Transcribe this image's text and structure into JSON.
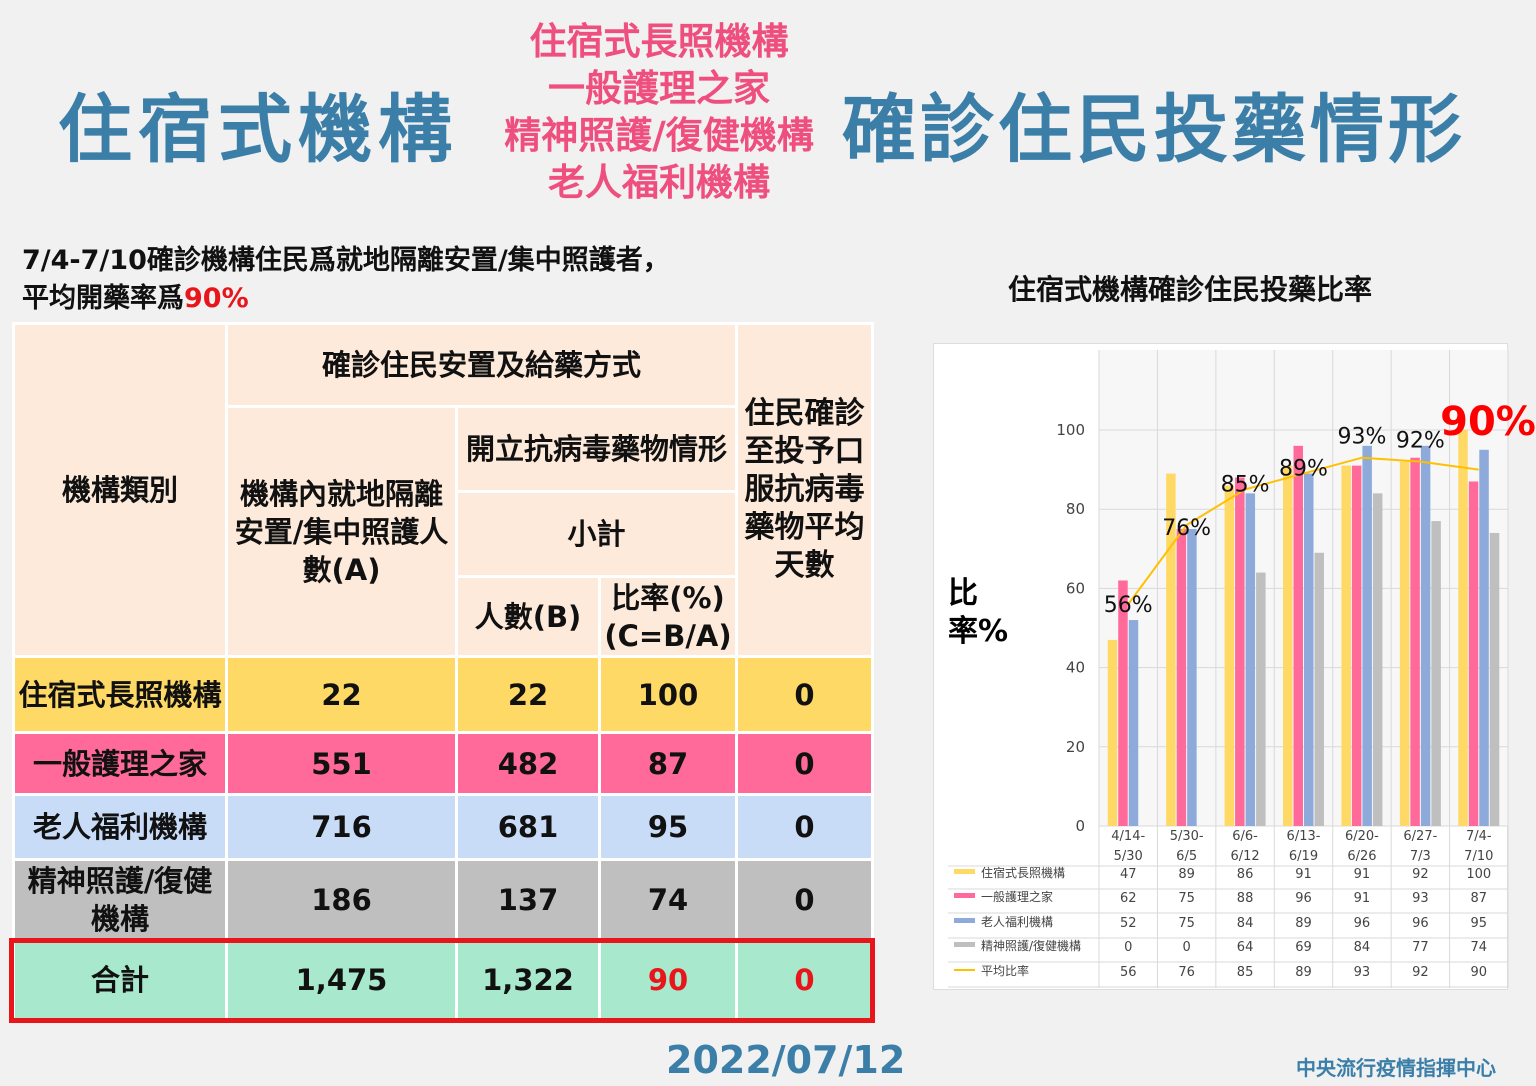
{
  "title": {
    "left": "住宿式機構",
    "middle": [
      "住宿式長照機構",
      "一般護理之家",
      "精神照護/復健機構",
      "老人福利機構"
    ],
    "right": "確診住民投藥情形"
  },
  "subtitle": {
    "line1": "7/4-7/10確診機構住民爲就地隔離安置/集中照護者，",
    "line2_prefix": "平均開藥率爲",
    "line2_value": "90%"
  },
  "table": {
    "headers": {
      "category": "機構類別",
      "group": "確診住民安置及給藥方式",
      "isolated": "機構內就地隔離安置/集中照護人數(A)",
      "antiviral": "開立抗病毒藥物情形",
      "subtotal": "小計",
      "count": "人數(B)",
      "rate": "比率(%)(C=B/A)",
      "days": "住民確診至投予口服抗病毒藥物平均天數"
    },
    "rows": [
      {
        "category": "住宿式長照機構",
        "a": "22",
        "b": "22",
        "rate": "100",
        "days": "0"
      },
      {
        "category": "一般護理之家",
        "a": "551",
        "b": "482",
        "rate": "87",
        "days": "0"
      },
      {
        "category": "老人福利機構",
        "a": "716",
        "b": "681",
        "rate": "95",
        "days": "0"
      },
      {
        "category": "精神照護/復健機構",
        "a": "186",
        "b": "137",
        "rate": "74",
        "days": "0"
      }
    ],
    "total": {
      "category": "合計",
      "a": "1,475",
      "b": "1,322",
      "rate": "90",
      "days": "0"
    }
  },
  "date": "2022/07/12",
  "org": "中央流行疫情指揮中心",
  "chart_data": {
    "type": "bar",
    "title": "住宿式機構確診住民投藥比率",
    "ylabel": "比率%",
    "ylim": [
      0,
      100
    ],
    "yticks": [
      0,
      20,
      40,
      60,
      80,
      100
    ],
    "grid": true,
    "legend": "bottom-table",
    "categories": [
      "4/14-5/30",
      "5/30-6/5",
      "6/6-6/12",
      "6/13-6/19",
      "6/20-6/26",
      "6/27-7/3",
      "7/4-7/10"
    ],
    "series": [
      {
        "name": "住宿式長照機構",
        "type": "bar",
        "color": "#ffd966",
        "values": [
          47,
          89,
          86,
          91,
          91,
          92,
          100
        ]
      },
      {
        "name": "一般護理之家",
        "type": "bar",
        "color": "#ff6a9a",
        "values": [
          62,
          75,
          88,
          96,
          91,
          93,
          87
        ]
      },
      {
        "name": "老人福利機構",
        "type": "bar",
        "color": "#8eaadb",
        "values": [
          52,
          75,
          84,
          89,
          96,
          96,
          95
        ]
      },
      {
        "name": "精神照護/復健機構",
        "type": "bar",
        "color": "#bfbfbf",
        "values": [
          0,
          0,
          64,
          69,
          84,
          77,
          74
        ]
      },
      {
        "name": "平均比率",
        "type": "line",
        "color": "#ffc000",
        "values": [
          56,
          76,
          85,
          89,
          93,
          92,
          90
        ]
      }
    ],
    "annotations": [
      "56%",
      "76%",
      "85%",
      "89%",
      "93%",
      "92%",
      "90%"
    ]
  }
}
